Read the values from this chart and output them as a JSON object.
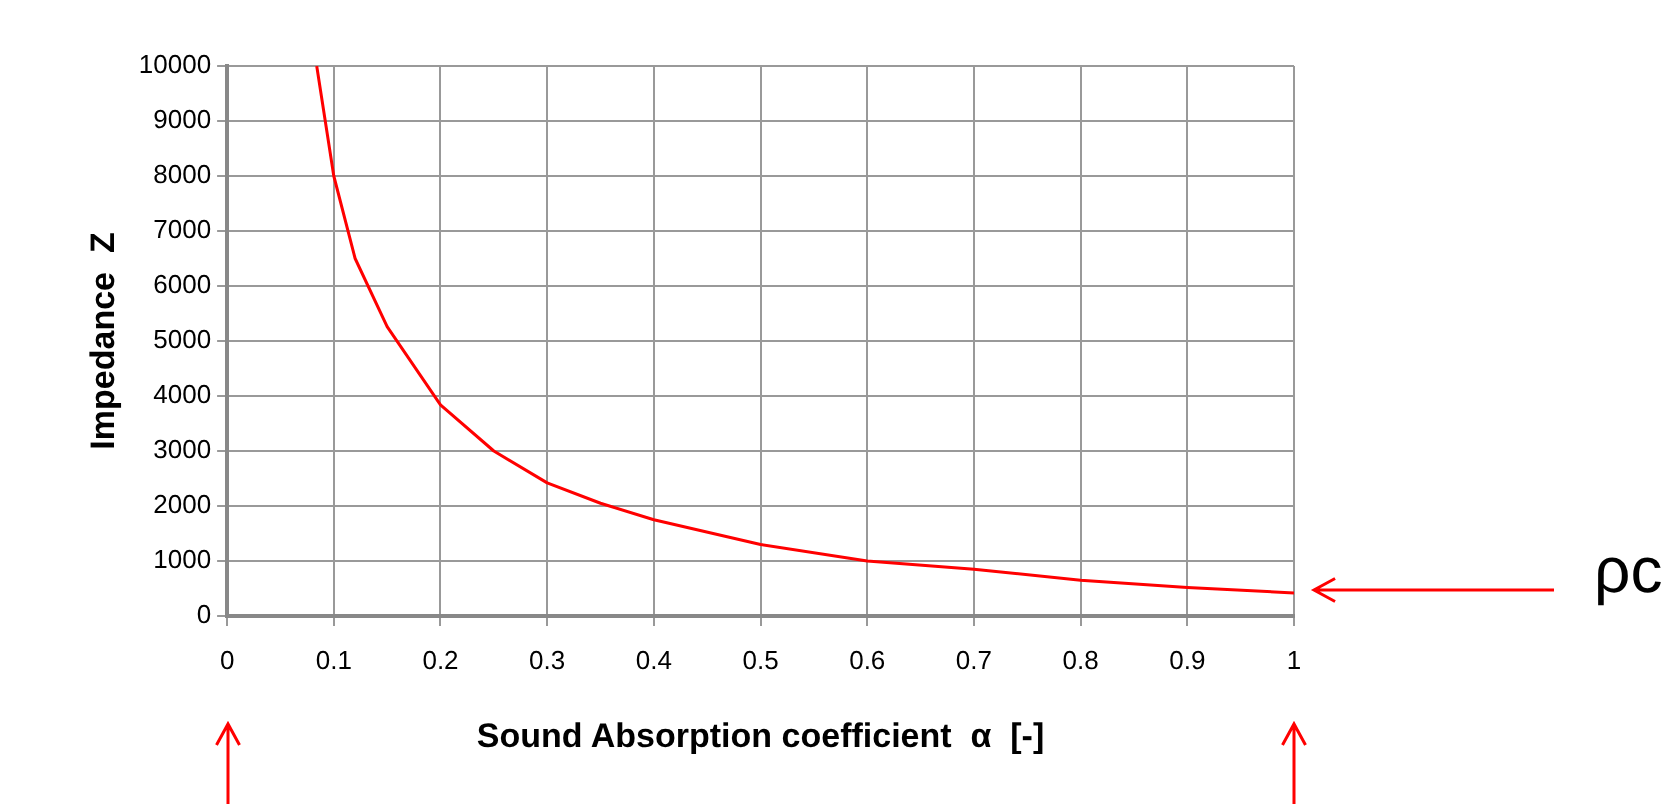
{
  "chart_data": {
    "type": "line",
    "xlabel": "Sound Absorption coefficient  α  [-]",
    "ylabel": "Impedance  Z",
    "x": [
      0.084,
      0.1,
      0.12,
      0.15,
      0.2,
      0.25,
      0.3,
      0.35,
      0.4,
      0.5,
      0.6,
      0.7,
      0.8,
      0.9,
      1.0
    ],
    "series": [
      {
        "color": "#ff0000",
        "values": [
          10000,
          8000,
          6500,
          5260,
          3840,
          3000,
          2420,
          2050,
          1750,
          1300,
          1000,
          850,
          650,
          520,
          420
        ]
      }
    ],
    "xlim": [
      0,
      1
    ],
    "xticks": [
      0,
      0.1,
      0.2,
      0.3,
      0.4,
      0.5,
      0.6,
      0.7,
      0.8,
      0.9,
      1
    ],
    "ylim": [
      0,
      10000
    ],
    "yticks": [
      0,
      1000,
      2000,
      3000,
      4000,
      5000,
      6000,
      7000,
      8000,
      9000,
      10000
    ],
    "grid": true,
    "marker": "none",
    "line_style": "solid",
    "annotations": [
      "ρc"
    ]
  }
}
